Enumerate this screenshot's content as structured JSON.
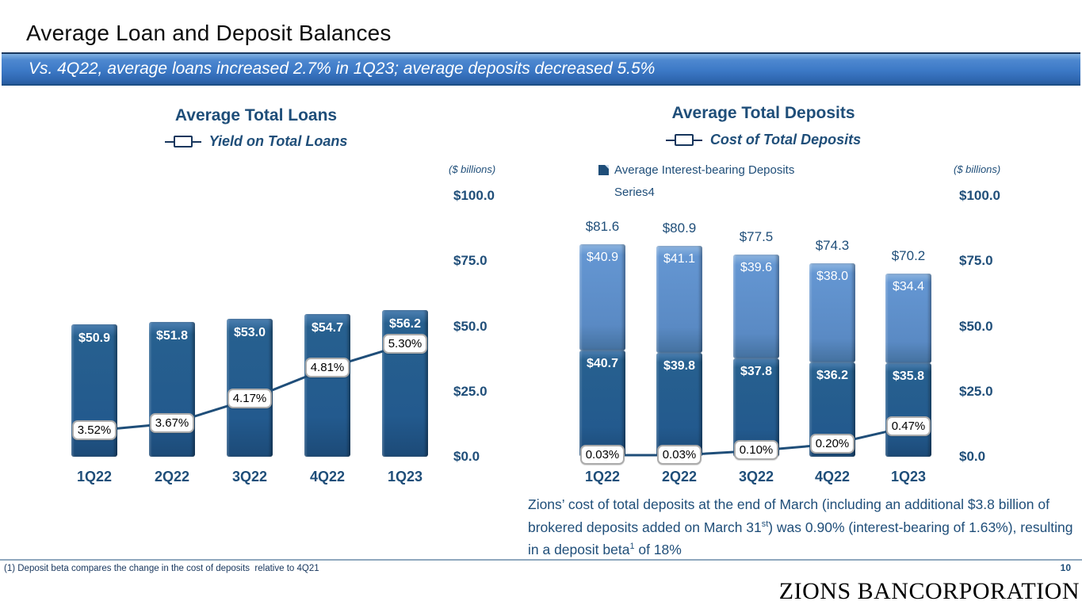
{
  "slide": {
    "title": "Average Loan and Deposit Balances",
    "banner": "Vs. 4Q22, average loans increased 2.7% in 1Q23; average deposits decreased 5.5%",
    "page_number": "10",
    "logo": "ZIONS BANCORPORATION",
    "footnote": "(1) Deposit beta compares the change in the cost of deposits  relative to 4Q21",
    "commentary": {
      "part1": "Zions’ cost of total deposits at the end of March (including an additional $3.8 billion of brokered deposits added on March 31",
      "sup1": "st",
      "part2": ") was 0.90% (interest-bearing of 1.63%), resulting in a deposit beta",
      "sup2": "1",
      "part3": " of 18%"
    }
  },
  "colors": {
    "navy_text": "#1F4E79",
    "line_color": "#1F4E79",
    "bar_dark": "#235A8E",
    "bar_light": "#5A8AC4",
    "banner_blue": "#3C79C6"
  },
  "chart_data": [
    {
      "id": "loans",
      "type": "bar",
      "title": "Average Total Loans",
      "line_legend": "Yield on Total Loans",
      "axis_note": "($ billions)",
      "categories": [
        "1Q22",
        "2Q22",
        "3Q22",
        "4Q22",
        "1Q23"
      ],
      "values": [
        50.9,
        51.8,
        53.0,
        54.7,
        56.2
      ],
      "bar_labels": [
        "$50.9",
        "$51.8",
        "$53.0",
        "$54.7",
        "$56.2"
      ],
      "line_name": "Yield on Total Loans",
      "line_values": [
        3.52,
        3.67,
        4.17,
        4.81,
        5.3
      ],
      "line_labels": [
        "3.52%",
        "3.67%",
        "4.17%",
        "4.81%",
        "5.30%"
      ],
      "y_ticks": [
        "$100.0",
        "$75.0",
        "$50.0",
        "$25.0",
        "$0.0"
      ],
      "ylim": [
        0,
        100
      ],
      "grid": false,
      "legend_position": "top"
    },
    {
      "id": "deposits",
      "type": "stacked-bar",
      "title": "Average Total Deposits",
      "line_legend": "Cost of Total Deposits",
      "bar_legend": "Average Interest-bearing Deposits",
      "extra_legend": "Series4",
      "axis_note": "($ billions)",
      "categories": [
        "1Q22",
        "2Q22",
        "3Q22",
        "4Q22",
        "1Q23"
      ],
      "series": [
        {
          "name": "Average Interest-bearing Deposits",
          "color_role": "bar_dark",
          "values": [
            40.7,
            39.8,
            37.8,
            36.2,
            35.8
          ],
          "labels": [
            "$40.7",
            "$39.8",
            "$37.8",
            "$36.2",
            "$35.8"
          ]
        },
        {
          "name": "Series4",
          "color_role": "bar_light",
          "values": [
            40.9,
            41.1,
            39.6,
            38.0,
            34.4
          ],
          "labels": [
            "$40.9",
            "$41.1",
            "$39.6",
            "$38.0",
            "$34.4"
          ]
        }
      ],
      "totals": [
        81.6,
        80.9,
        77.5,
        74.3,
        70.2
      ],
      "total_labels": [
        "$81.6",
        "$80.9",
        "$77.5",
        "$74.3",
        "$70.2"
      ],
      "line_name": "Cost of Total Deposits",
      "line_values": [
        0.03,
        0.03,
        0.1,
        0.2,
        0.47
      ],
      "line_labels": [
        "0.03%",
        "0.03%",
        "0.10%",
        "0.20%",
        "0.47%"
      ],
      "y_ticks": [
        "$100.0",
        "$75.0",
        "$50.0",
        "$25.0",
        "$0.0"
      ],
      "ylim": [
        0,
        100
      ],
      "grid": false,
      "legend_position": "top"
    }
  ]
}
